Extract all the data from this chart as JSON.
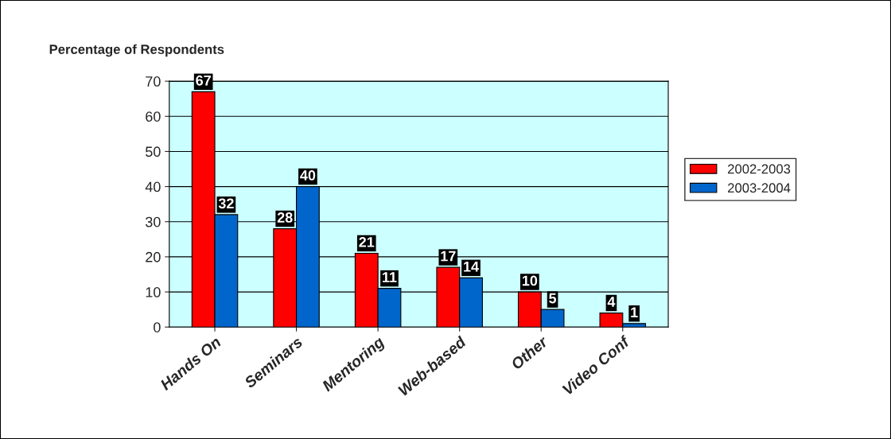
{
  "chart_data": {
    "type": "bar",
    "title": "Percentage of Respondents",
    "categories": [
      "Hands On",
      "Seminars",
      "Mentoring",
      "Web-based",
      "Other",
      "Video Conf"
    ],
    "series": [
      {
        "name": "2002-2003",
        "color": "#ff0000",
        "values": [
          67,
          28,
          21,
          17,
          10,
          4
        ]
      },
      {
        "name": "2003-2004",
        "color": "#0066cc",
        "values": [
          32,
          40,
          11,
          14,
          5,
          1
        ]
      }
    ],
    "ylim": [
      0,
      70
    ],
    "yticks": [
      0,
      10,
      20,
      30,
      40,
      50,
      60,
      70
    ],
    "grid": "y",
    "legend": "right",
    "data_labels": true
  }
}
